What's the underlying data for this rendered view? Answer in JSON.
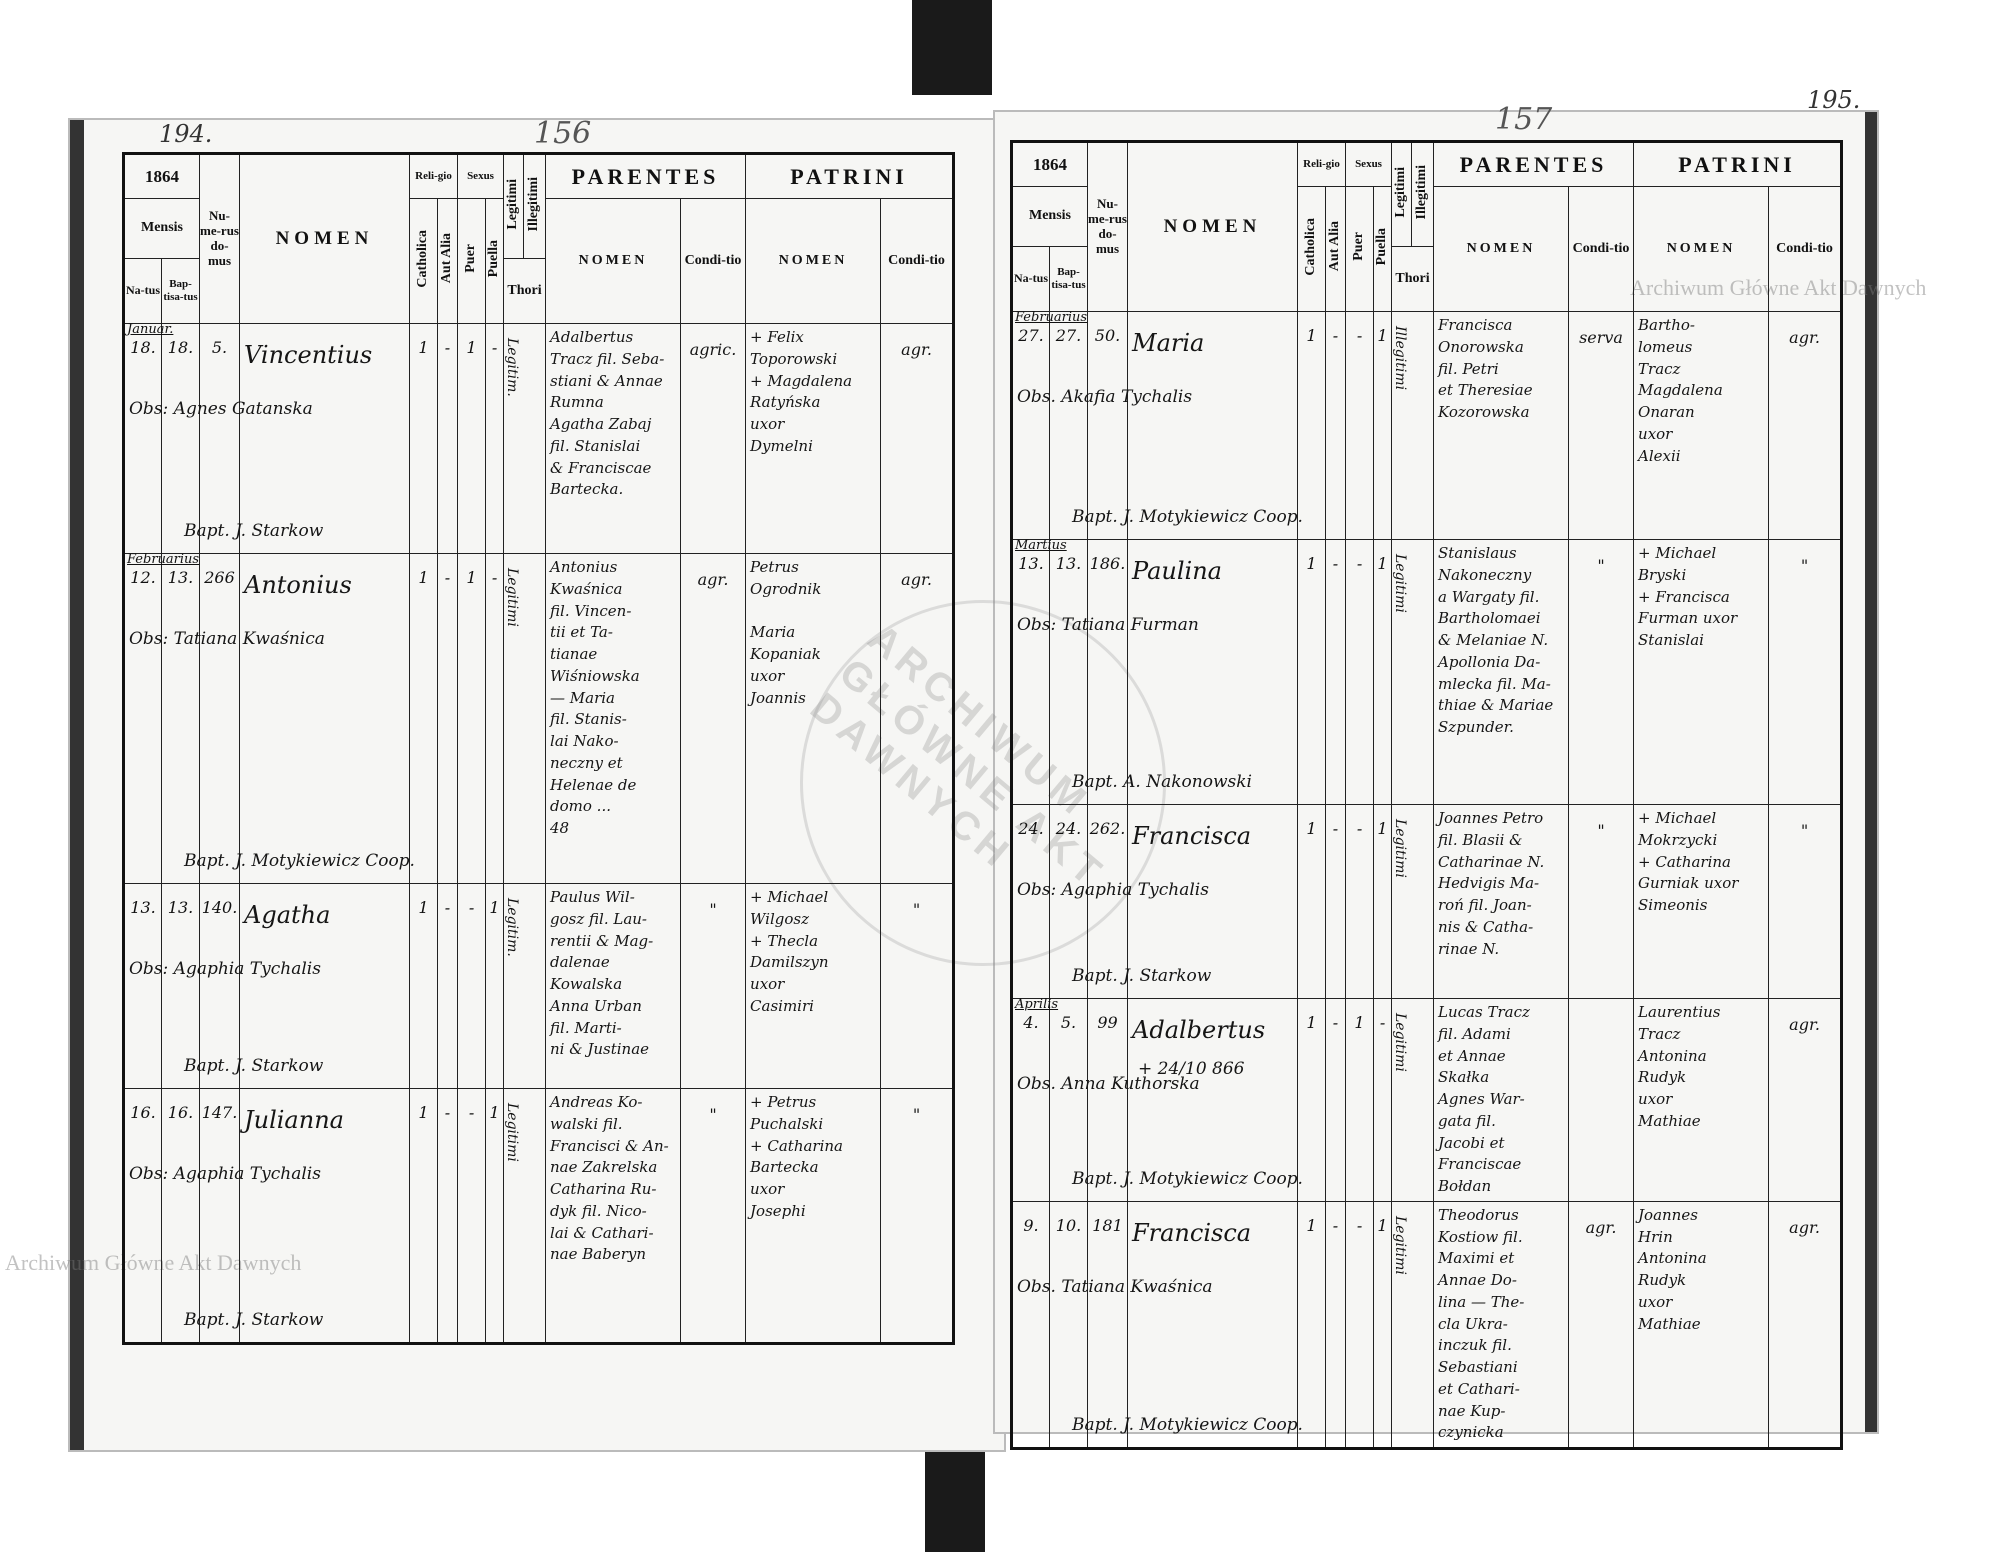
{
  "pages": {
    "left": {
      "numbers": [
        "194.",
        "156"
      ],
      "year": "1864"
    },
    "right": {
      "numbers": [
        "157",
        "195."
      ],
      "year": "1864"
    }
  },
  "header": {
    "mensis": "Mensis",
    "natus": "Na-tus",
    "baptisatus": "Bap-tisa-tus",
    "numerus": "Nu-me-rus do-mus",
    "nomen": "NOMEN",
    "religio": "Reli-gio",
    "catholica": "Catholica",
    "aut_alia": "Aut Alia",
    "sexus": "Sexus",
    "puer": "Puer",
    "puella": "Puella",
    "legitimi": "Legitimi",
    "illegitimi": "Illegitimi",
    "thori": "Thori",
    "parentes": "PARENTES",
    "patrini": "PATRINI",
    "sub_nomen": "NOMEN",
    "conditio": "Condi-tio"
  },
  "watermark": {
    "text": "Archiwum Główne Akt Dawnych",
    "stamp": "ARCHIWUM GŁÓWNE AKT DAWNYCH"
  },
  "left_entries": [
    {
      "month": "Januar.",
      "natus": "18.",
      "bapt": "18.",
      "num": "5.",
      "nomen": "Vincentius",
      "cath": "1",
      "alia": "-",
      "puer": "1",
      "puella": "-",
      "leg": "Legitim.",
      "parentes": "Adalbertus\nTracz fil. Seba-\nstiani & Annae\nRumna\nAgatha Zabaj\nfil. Stanislai\n& Franciscae\nBartecka.",
      "par_cond": "agric.",
      "patrini": "+ Felix\nToporowski\n+ Magdalena\nRatyńska\nuxor\nDymelni",
      "pat_cond": "agr.",
      "obs": "Obs: Agnes\nGatanska",
      "bapt_by": "Bapt. J. Starkow"
    },
    {
      "month": "Februarius",
      "natus": "12.",
      "bapt": "13.",
      "num": "266",
      "nomen": "Antonius",
      "cath": "1",
      "alia": "-",
      "puer": "1",
      "puella": "-",
      "leg": "Legitimi",
      "parentes": "Antonius\nKwaśnica\nfil. Vincen-\ntii et Ta-\ntianae\nWiśniowska\n— Maria\nfil. Stanis-\nlai Nako-\nneczny et\nHelenae de\ndomo ...\n48",
      "par_cond": "agr.",
      "patrini": "Petrus\nOgrodnik\n\nMaria\nKopaniak\nuxor\nJoannis",
      "pat_cond": "agr.",
      "obs": "Obs: Tatiana\nKwaśnica",
      "bapt_by": "Bapt. J. Motykiewicz\nCoop."
    },
    {
      "month": "",
      "natus": "13.",
      "bapt": "13.",
      "num": "140.",
      "nomen": "Agatha",
      "cath": "1",
      "alia": "-",
      "puer": "-",
      "puella": "1",
      "leg": "Legitim.",
      "parentes": "Paulus Wil-\ngosz fil. Lau-\nrentii & Mag-\ndalenae Kowalska\nAnna Urban\nfil. Marti-\nni & Justinae",
      "par_cond": "\"",
      "patrini": "+ Michael\nWilgosz\n+ Thecla\nDamilszyn\nuxor\nCasimiri",
      "pat_cond": "\"",
      "obs": "Obs:\nAgaphia\nTychalis",
      "bapt_by": "Bapt. J. Starkow"
    },
    {
      "month": "",
      "natus": "16.",
      "bapt": "16.",
      "num": "147.",
      "nomen": "Julianna",
      "cath": "1",
      "alia": "-",
      "puer": "-",
      "puella": "1",
      "leg": "Legitimi",
      "parentes": "Andreas Ko-\nwalski fil.\nFrancisci & An-\nnae Zakrelska\nCatharina Ru-\ndyk fil. Nico-\nlai & Cathari-\nnae Baberyn",
      "par_cond": "\"",
      "patrini": "+ Petrus\nPuchalski\n+ Catharina\nBartecka\nuxor\nJosephi",
      "pat_cond": "\"",
      "obs": "Obs:\nAgaphia\nTychalis",
      "bapt_by": "Bapt. J. Starkow"
    }
  ],
  "right_entries": [
    {
      "month": "Februarius",
      "natus": "27.",
      "bapt": "27.",
      "num": "50.",
      "nomen": "Maria",
      "cath": "1",
      "alia": "-",
      "puer": "-",
      "puella": "1",
      "leg": "Illegitimi",
      "parentes": "Francisca\nOnorowska\nfil. Petri\net Theresiae\nKozorowska",
      "par_cond": "serva",
      "patrini": "Bartho-\nlomeus\nTracz\nMagdalena\nOnaran\nuxor\nAlexii",
      "pat_cond": "agr.",
      "obs": "Obs. Akafia\nTychalis",
      "bapt_by": "Bapt. J. Motykiewicz Coop."
    },
    {
      "month": "Martius",
      "natus": "13.",
      "bapt": "13.",
      "num": "186.",
      "nomen": "Paulina",
      "cath": "1",
      "alia": "-",
      "puer": "-",
      "puella": "1",
      "leg": "Legitimi",
      "parentes": "Stanislaus\nNakoneczny\na Wargaty fil.\nBartholomaei\n& Melaniae N.\nApollonia Da-\nmlecka fil. Ma-\nthiae & Mariae\nSzpunder.",
      "par_cond": "\"",
      "patrini": "+ Michael\nBryski\n+ Francisca\nFurman uxor\nStanislai",
      "pat_cond": "\"",
      "obs": "Obs:\nTatiana\nFurman",
      "bapt_by": "Bapt. A. Nakonowski"
    },
    {
      "month": "",
      "natus": "24.",
      "bapt": "24.",
      "num": "262.",
      "nomen": "Francisca",
      "cath": "1",
      "alia": "-",
      "puer": "-",
      "puella": "1",
      "leg": "Legitimi",
      "parentes": "Joannes Petro\nfil. Blasii &\nCatharinae N.\nHedvigis Ma-\nroń fil. Joan-\nnis & Catha-\nrinae N.",
      "par_cond": "\"",
      "patrini": "+ Michael\nMokrzycki\n+ Catharina\nGurniak uxor\nSimeonis",
      "pat_cond": "\"",
      "obs": "Obs:\nAgaphia\nTychalis",
      "bapt_by": "Bapt. J. Starkow"
    },
    {
      "month": "Aprilis",
      "natus": "4.",
      "bapt": "5.",
      "num": "99",
      "nomen": "Adalbertus",
      "note": "+ 24/10 866",
      "cath": "1",
      "alia": "-",
      "puer": "1",
      "puella": "-",
      "leg": "Legitimi",
      "parentes": "Lucas Tracz\nfil. Adami\net Annae\nSkałka\nAgnes War-\ngata fil.\nJacobi et\nFranciscae\nBołdan",
      "par_cond": "",
      "patrini": "Laurentius\nTracz\nAntonina\nRudyk\nuxor\nMathiae",
      "pat_cond": "agr.",
      "obs": "Obs. Anna\nKuthorska",
      "bapt_by": "Bapt. J. Motykiewicz Coop."
    },
    {
      "month": "",
      "natus": "9.",
      "bapt": "10.",
      "num": "181",
      "nomen": "Francisca",
      "cath": "1",
      "alia": "-",
      "puer": "-",
      "puella": "1",
      "leg": "Legitimi",
      "parentes": "Theodorus\nKostiow fil.\nMaximi et\nAnnae Do-\nlina — The-\ncla Ukra-\ninczuk fil.\nSebastiani\net Cathari-\nnae Kup-\nczynicka",
      "par_cond": "agr.",
      "patrini": "Joannes\nHrin\nAntonina\nRudyk\nuxor\nMathiae",
      "pat_cond": "agr.",
      "obs": "Obs. Tatiana\nKwaśnica",
      "bapt_by": "Bapt. J. Motykiewicz\nCoop."
    }
  ]
}
